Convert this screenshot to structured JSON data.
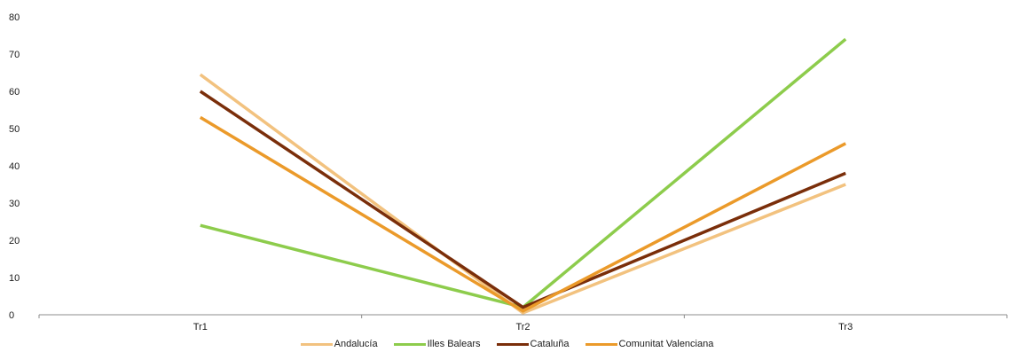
{
  "chart_data": {
    "type": "line",
    "title": "",
    "xlabel": "",
    "ylabel": "",
    "categories": [
      "Tr1",
      "Tr2",
      "Tr3"
    ],
    "ylim": [
      0,
      80
    ],
    "yticks": [
      0,
      10,
      20,
      30,
      40,
      50,
      60,
      70,
      80
    ],
    "grid": false,
    "legend_position": "bottom",
    "series": [
      {
        "name": "Andalucía",
        "color": "#f2c27f",
        "values": [
          64.5,
          0.5,
          35
        ]
      },
      {
        "name": "Illes Balears",
        "color": "#8dcc4c",
        "values": [
          24,
          2,
          74
        ]
      },
      {
        "name": "Cataluña",
        "color": "#7a2e0a",
        "values": [
          60,
          2,
          38
        ]
      },
      {
        "name": "Comunitat Valenciana",
        "color": "#eb9a2a",
        "values": [
          53,
          1,
          46
        ]
      }
    ]
  }
}
